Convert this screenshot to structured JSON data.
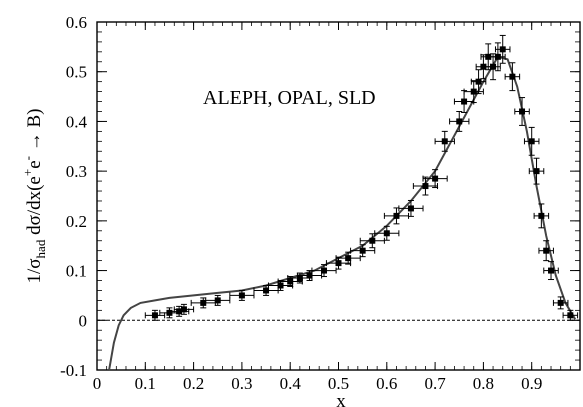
{
  "chart_data": {
    "type": "scatter",
    "title": "",
    "xlabel": "x",
    "ylabel_parts": {
      "lead": "1/σ",
      "sub": "had",
      "mid": " dσ/dx(e",
      "sup1": "+",
      "e2": "e",
      "sup2": "-",
      "tail": " → B)"
    },
    "annotation": "ALEPH, OPAL, SLD",
    "xlim": [
      0,
      1
    ],
    "ylim": [
      -0.1,
      0.6
    ],
    "x_ticks": [
      0,
      0.1,
      0.2,
      0.3,
      0.4,
      0.5,
      0.6,
      0.7,
      0.8,
      0.9
    ],
    "x_tick_labels": [
      "0",
      "0.1",
      "0.2",
      "0.3",
      "0.4",
      "0.5",
      "0.6",
      "0.7",
      "0.8",
      "0.9"
    ],
    "y_ticks": [
      -0.1,
      0,
      0.1,
      0.2,
      0.3,
      0.4,
      0.5,
      0.6
    ],
    "y_tick_labels": [
      "-0.1",
      "0",
      "0.1",
      "0.2",
      "0.3",
      "0.4",
      "0.5",
      "0.6"
    ],
    "reference_line_y": 0,
    "curve": {
      "x": [
        0.025,
        0.035,
        0.045,
        0.055,
        0.07,
        0.09,
        0.12,
        0.15,
        0.2,
        0.25,
        0.3,
        0.35,
        0.4,
        0.45,
        0.5,
        0.55,
        0.6,
        0.65,
        0.7,
        0.75,
        0.8,
        0.83,
        0.85,
        0.87,
        0.89,
        0.91,
        0.93,
        0.95,
        0.97,
        0.99
      ],
      "y": [
        -0.1,
        -0.045,
        -0.01,
        0.01,
        0.025,
        0.035,
        0.04,
        0.045,
        0.05,
        0.055,
        0.06,
        0.07,
        0.085,
        0.1,
        0.125,
        0.15,
        0.19,
        0.24,
        0.3,
        0.39,
        0.48,
        0.53,
        0.525,
        0.47,
        0.38,
        0.27,
        0.17,
        0.09,
        0.035,
        0.002
      ]
    },
    "series": [
      {
        "name": "",
        "x": [
          0.12,
          0.15,
          0.17,
          0.18,
          0.22,
          0.25,
          0.3,
          0.35,
          0.38,
          0.4,
          0.42,
          0.44,
          0.47,
          0.5,
          0.52,
          0.55,
          0.57,
          0.6,
          0.62,
          0.65,
          0.68,
          0.7,
          0.72,
          0.75,
          0.76,
          0.78,
          0.79,
          0.8,
          0.81,
          0.82,
          0.83,
          0.84,
          0.86,
          0.88,
          0.9,
          0.91,
          0.92,
          0.93,
          0.94,
          0.96,
          0.98
        ],
        "y": [
          0.01,
          0.015,
          0.018,
          0.022,
          0.035,
          0.04,
          0.05,
          0.06,
          0.07,
          0.078,
          0.085,
          0.09,
          0.1,
          0.115,
          0.125,
          0.14,
          0.16,
          0.175,
          0.21,
          0.225,
          0.27,
          0.285,
          0.36,
          0.4,
          0.44,
          0.46,
          0.48,
          0.51,
          0.53,
          0.51,
          0.53,
          0.545,
          0.49,
          0.42,
          0.36,
          0.3,
          0.21,
          0.14,
          0.1,
          0.035,
          0.01
        ],
        "xerr": [
          0.02,
          0.02,
          0.02,
          0.02,
          0.025,
          0.025,
          0.025,
          0.025,
          0.025,
          0.025,
          0.025,
          0.025,
          0.025,
          0.025,
          0.025,
          0.025,
          0.025,
          0.025,
          0.025,
          0.025,
          0.025,
          0.025,
          0.02,
          0.02,
          0.02,
          0.02,
          0.015,
          0.015,
          0.015,
          0.015,
          0.015,
          0.015,
          0.015,
          0.015,
          0.015,
          0.015,
          0.015,
          0.015,
          0.015,
          0.015,
          0.015
        ],
        "yerr": [
          0.01,
          0.01,
          0.01,
          0.01,
          0.01,
          0.01,
          0.01,
          0.01,
          0.01,
          0.01,
          0.01,
          0.01,
          0.012,
          0.012,
          0.012,
          0.012,
          0.014,
          0.014,
          0.016,
          0.016,
          0.018,
          0.018,
          0.02,
          0.02,
          0.022,
          0.022,
          0.024,
          0.024,
          0.026,
          0.026,
          0.028,
          0.028,
          0.028,
          0.028,
          0.028,
          0.026,
          0.024,
          0.02,
          0.018,
          0.012,
          0.01
        ]
      }
    ],
    "grid": false,
    "colors": {
      "marker": "#000000",
      "curve": "#444444",
      "axis": "#000000"
    }
  }
}
